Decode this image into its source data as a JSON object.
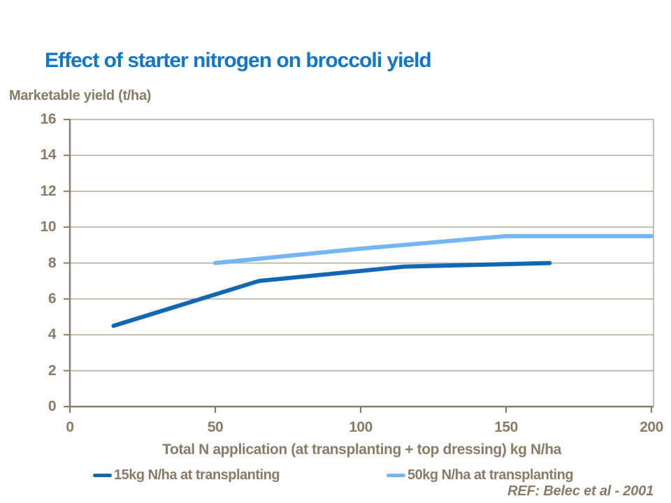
{
  "colors": {
    "background": "#FFFFFF",
    "title_blue": "#1476C6",
    "text_brown": "#8A7A66",
    "gridline": "#B3A99B",
    "axis": "#8A7A66",
    "series1_dark_blue": "#1068B2",
    "series2_light_blue": "#74B5F3"
  },
  "chart_data": {
    "type": "line",
    "title": "Effect of starter nitrogen on broccoli yield",
    "xlabel": "Total N application (at transplanting + top dressing) kg N/ha",
    "ylabel": "Marketable yield (t/ha)",
    "xlim": [
      0,
      200
    ],
    "ylim": [
      0,
      16
    ],
    "xticks": [
      0,
      50,
      100,
      150,
      200
    ],
    "yticks": [
      0,
      2,
      4,
      6,
      8,
      10,
      12,
      14,
      16
    ],
    "grid": "horizontal gridlines on, light tan color",
    "legend_position": "bottom",
    "series": [
      {
        "name": "15kg N/ha at transplanting",
        "color": "#1068B2",
        "x": [
          15,
          65,
          115,
          165
        ],
        "y": [
          4.5,
          7.0,
          7.8,
          8.0
        ]
      },
      {
        "name": "50kg N/ha at transplanting",
        "color": "#74B5F3",
        "x": [
          50,
          100,
          150,
          200
        ],
        "y": [
          8.0,
          8.8,
          9.5,
          9.5
        ]
      }
    ],
    "annotation": "REF: Belec et al - 2001"
  }
}
